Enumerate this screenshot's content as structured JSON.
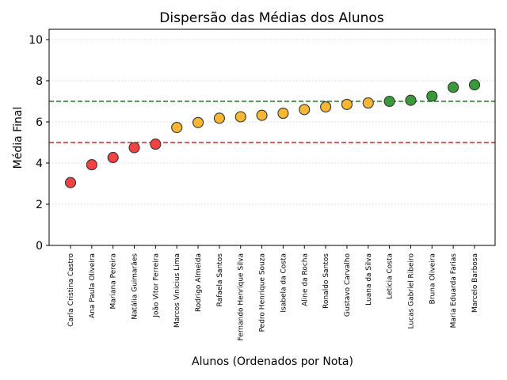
{
  "chart_data": {
    "type": "scatter",
    "title": "Dispersão das Médias dos Alunos",
    "xlabel": "Alunos (Ordenados por Nota)",
    "ylabel": "Média Final",
    "ylim": [
      0,
      10.5
    ],
    "yticks": [
      0,
      2,
      4,
      6,
      8,
      10
    ],
    "grid": "horizontal-dotted",
    "categories": [
      "Carla Cristina Castro",
      "Ana Paula Oliveira",
      "Mariana Pereira",
      "Natália Guimarães",
      "João Vitor Ferreira",
      "Marcos Vinicius Lima",
      "Rodrigo Almeida",
      "Rafaela Santos",
      "Fernando Henrique Silva",
      "Pedro Henrique Souza",
      "Isabela da Costa",
      "Aline da Rocha",
      "Ronaldo Santos",
      "Gustavo Carvalho",
      "Luana da Silva",
      "Leticia Costa",
      "Lucas Gabriel Ribeiro",
      "Bruna Oliveira",
      "Maria Eduarda Farias",
      "Marcelo Barbosa"
    ],
    "values": [
      3.05,
      3.92,
      4.27,
      4.75,
      4.92,
      5.73,
      5.97,
      6.18,
      6.25,
      6.32,
      6.42,
      6.6,
      6.73,
      6.85,
      6.92,
      7.0,
      7.05,
      7.25,
      7.68,
      7.8
    ],
    "reference_lines": [
      {
        "y": 5,
        "color": "#d62728",
        "style": "dashed"
      },
      {
        "y": 7,
        "color": "#1a7f1a",
        "style": "dashed"
      }
    ],
    "color_rules": {
      "below_5": "#f44141",
      "from_5_below_7": "#f7b733",
      "from_7": "#3a9a3a"
    },
    "marker_edge": "#333333"
  }
}
